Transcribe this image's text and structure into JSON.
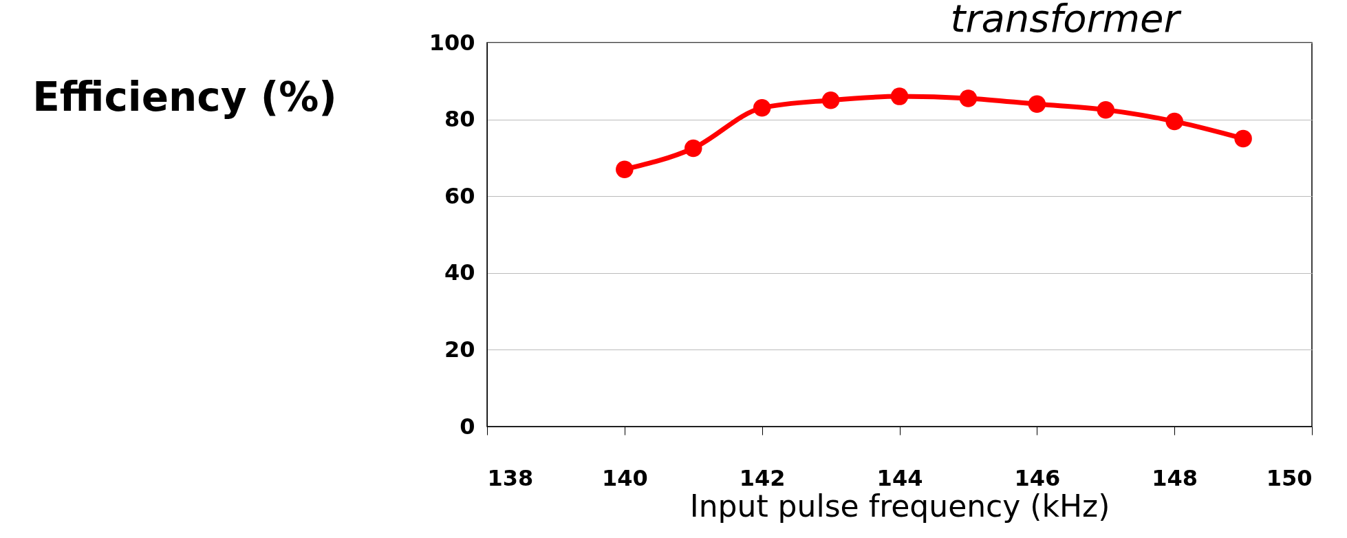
{
  "chart_data": {
    "type": "line",
    "ylabel": "Efficiency (%)",
    "xlabel": "Input pulse frequency (kHz)",
    "annotations": [
      "transformer"
    ],
    "x": [
      140,
      141,
      142,
      143,
      144,
      145,
      146,
      147,
      148,
      149
    ],
    "series": [
      {
        "color": "#ff0000",
        "values": [
          67,
          72.5,
          83,
          85,
          86,
          85.5,
          84,
          82.5,
          79.5,
          75
        ]
      }
    ],
    "xlim": [
      138,
      150
    ],
    "xticks": [
      138,
      140,
      142,
      144,
      146,
      148,
      150
    ],
    "ylim": [
      0,
      100
    ],
    "yticks": [
      0,
      20,
      40,
      60,
      80,
      100
    ],
    "grid": "y",
    "marker": "circle",
    "line_style": "solid"
  }
}
